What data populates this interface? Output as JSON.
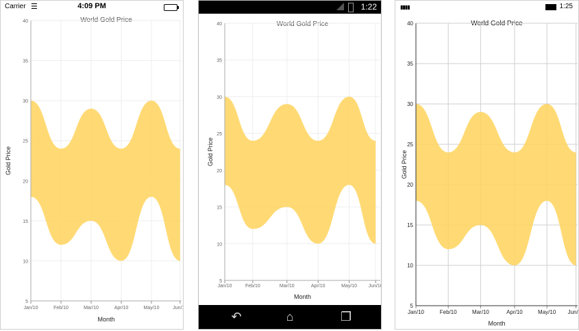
{
  "ios_status": {
    "carrier": "Carrier",
    "time": "4:09 PM"
  },
  "android_status": {
    "time": "1:22"
  },
  "windows_status": {
    "time": "1:25"
  },
  "colors": {
    "area_fill": "#FFD45C",
    "area_fill_opacity": 0.85,
    "grid": "#EEEEEE",
    "windows_grid": "#CFCFCF"
  },
  "chart_data": [
    {
      "type": "area",
      "platform": "ios",
      "title": "World Gold Price",
      "xlabel": "Month",
      "ylabel": "Gold Price",
      "categories": [
        "Jan/10",
        "Feb/10",
        "Mar/10",
        "Apr/10",
        "May/10",
        "Jun/10"
      ],
      "series": [
        {
          "high": [
            30,
            24,
            29,
            24,
            30,
            24
          ],
          "low": [
            18,
            12,
            15,
            10,
            18,
            10
          ]
        }
      ],
      "ylim": [
        5,
        40
      ],
      "yticks": [
        5,
        10,
        15,
        20,
        25,
        30,
        35,
        40
      ],
      "grid": true
    },
    {
      "type": "area",
      "platform": "android",
      "title": "World Gold Price",
      "xlabel": "Month",
      "ylabel": "Gold Price",
      "categories": [
        "Jan/10",
        "Feb/10",
        "Mar/10",
        "Apr/10",
        "May/10",
        "Jun/10"
      ],
      "series": [
        {
          "high": [
            30,
            24,
            29,
            24,
            30,
            24
          ],
          "low": [
            18,
            12,
            15,
            10,
            18,
            10
          ]
        }
      ],
      "ylim": [
        5,
        40
      ],
      "yticks": [
        5,
        10,
        15,
        20,
        25,
        30,
        35,
        40
      ],
      "grid": true
    },
    {
      "type": "area",
      "platform": "windows",
      "title": "World Gold Price",
      "xlabel": "Month",
      "ylabel": "Gold Price",
      "categories": [
        "Jan/10",
        "Feb/10",
        "Mar/10",
        "Apr/10",
        "May/10",
        "Jun/10"
      ],
      "series": [
        {
          "high": [
            30,
            24,
            29,
            24,
            30,
            24
          ],
          "low": [
            18,
            12,
            15,
            10,
            18,
            10
          ]
        }
      ],
      "ylim": [
        5,
        40
      ],
      "yticks": [
        5,
        10,
        15,
        20,
        25,
        30,
        35,
        40
      ],
      "grid": true
    }
  ]
}
